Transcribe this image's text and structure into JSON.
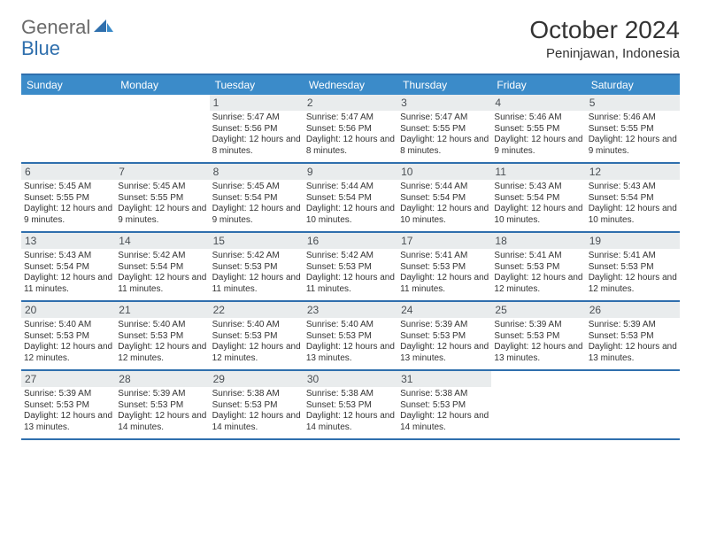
{
  "header": {
    "logo_text1": "General",
    "logo_text2": "Blue",
    "month_title": "October 2024",
    "location": "Peninjawan, Indonesia"
  },
  "colors": {
    "header_bar": "#3b8bc9",
    "rule": "#2f6fad",
    "daynum_bg": "#e9eced",
    "text": "#333333",
    "logo_gray": "#6a6a6a",
    "logo_blue": "#2f6fad",
    "background": "#ffffff"
  },
  "typography": {
    "title_fontsize": 28,
    "location_fontsize": 15,
    "dayhead_fontsize": 12,
    "daynum_fontsize": 12,
    "info_fontsize": 10,
    "font_family": "Arial"
  },
  "day_names": [
    "Sunday",
    "Monday",
    "Tuesday",
    "Wednesday",
    "Thursday",
    "Friday",
    "Saturday"
  ],
  "labels": {
    "sunrise_prefix": "Sunrise: ",
    "sunset_prefix": "Sunset: ",
    "daylight_prefix": "Daylight: "
  },
  "weeks": [
    [
      {
        "empty": true
      },
      {
        "empty": true
      },
      {
        "day": "1",
        "sunrise": "5:47 AM",
        "sunset": "5:56 PM",
        "daylight": "12 hours and 8 minutes."
      },
      {
        "day": "2",
        "sunrise": "5:47 AM",
        "sunset": "5:56 PM",
        "daylight": "12 hours and 8 minutes."
      },
      {
        "day": "3",
        "sunrise": "5:47 AM",
        "sunset": "5:55 PM",
        "daylight": "12 hours and 8 minutes."
      },
      {
        "day": "4",
        "sunrise": "5:46 AM",
        "sunset": "5:55 PM",
        "daylight": "12 hours and 9 minutes."
      },
      {
        "day": "5",
        "sunrise": "5:46 AM",
        "sunset": "5:55 PM",
        "daylight": "12 hours and 9 minutes."
      }
    ],
    [
      {
        "day": "6",
        "sunrise": "5:45 AM",
        "sunset": "5:55 PM",
        "daylight": "12 hours and 9 minutes."
      },
      {
        "day": "7",
        "sunrise": "5:45 AM",
        "sunset": "5:55 PM",
        "daylight": "12 hours and 9 minutes."
      },
      {
        "day": "8",
        "sunrise": "5:45 AM",
        "sunset": "5:54 PM",
        "daylight": "12 hours and 9 minutes."
      },
      {
        "day": "9",
        "sunrise": "5:44 AM",
        "sunset": "5:54 PM",
        "daylight": "12 hours and 10 minutes."
      },
      {
        "day": "10",
        "sunrise": "5:44 AM",
        "sunset": "5:54 PM",
        "daylight": "12 hours and 10 minutes."
      },
      {
        "day": "11",
        "sunrise": "5:43 AM",
        "sunset": "5:54 PM",
        "daylight": "12 hours and 10 minutes."
      },
      {
        "day": "12",
        "sunrise": "5:43 AM",
        "sunset": "5:54 PM",
        "daylight": "12 hours and 10 minutes."
      }
    ],
    [
      {
        "day": "13",
        "sunrise": "5:43 AM",
        "sunset": "5:54 PM",
        "daylight": "12 hours and 11 minutes."
      },
      {
        "day": "14",
        "sunrise": "5:42 AM",
        "sunset": "5:54 PM",
        "daylight": "12 hours and 11 minutes."
      },
      {
        "day": "15",
        "sunrise": "5:42 AM",
        "sunset": "5:53 PM",
        "daylight": "12 hours and 11 minutes."
      },
      {
        "day": "16",
        "sunrise": "5:42 AM",
        "sunset": "5:53 PM",
        "daylight": "12 hours and 11 minutes."
      },
      {
        "day": "17",
        "sunrise": "5:41 AM",
        "sunset": "5:53 PM",
        "daylight": "12 hours and 11 minutes."
      },
      {
        "day": "18",
        "sunrise": "5:41 AM",
        "sunset": "5:53 PM",
        "daylight": "12 hours and 12 minutes."
      },
      {
        "day": "19",
        "sunrise": "5:41 AM",
        "sunset": "5:53 PM",
        "daylight": "12 hours and 12 minutes."
      }
    ],
    [
      {
        "day": "20",
        "sunrise": "5:40 AM",
        "sunset": "5:53 PM",
        "daylight": "12 hours and 12 minutes."
      },
      {
        "day": "21",
        "sunrise": "5:40 AM",
        "sunset": "5:53 PM",
        "daylight": "12 hours and 12 minutes."
      },
      {
        "day": "22",
        "sunrise": "5:40 AM",
        "sunset": "5:53 PM",
        "daylight": "12 hours and 12 minutes."
      },
      {
        "day": "23",
        "sunrise": "5:40 AM",
        "sunset": "5:53 PM",
        "daylight": "12 hours and 13 minutes."
      },
      {
        "day": "24",
        "sunrise": "5:39 AM",
        "sunset": "5:53 PM",
        "daylight": "12 hours and 13 minutes."
      },
      {
        "day": "25",
        "sunrise": "5:39 AM",
        "sunset": "5:53 PM",
        "daylight": "12 hours and 13 minutes."
      },
      {
        "day": "26",
        "sunrise": "5:39 AM",
        "sunset": "5:53 PM",
        "daylight": "12 hours and 13 minutes."
      }
    ],
    [
      {
        "day": "27",
        "sunrise": "5:39 AM",
        "sunset": "5:53 PM",
        "daylight": "12 hours and 13 minutes."
      },
      {
        "day": "28",
        "sunrise": "5:39 AM",
        "sunset": "5:53 PM",
        "daylight": "12 hours and 14 minutes."
      },
      {
        "day": "29",
        "sunrise": "5:38 AM",
        "sunset": "5:53 PM",
        "daylight": "12 hours and 14 minutes."
      },
      {
        "day": "30",
        "sunrise": "5:38 AM",
        "sunset": "5:53 PM",
        "daylight": "12 hours and 14 minutes."
      },
      {
        "day": "31",
        "sunrise": "5:38 AM",
        "sunset": "5:53 PM",
        "daylight": "12 hours and 14 minutes."
      },
      {
        "empty": true
      },
      {
        "empty": true
      }
    ]
  ]
}
